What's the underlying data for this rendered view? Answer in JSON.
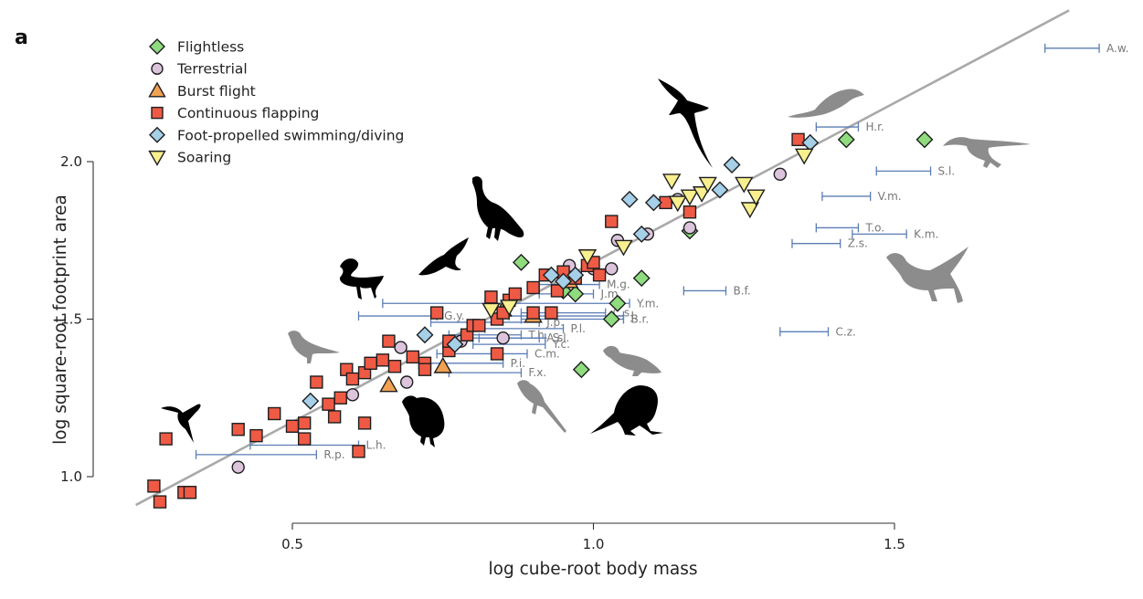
{
  "chart_data": {
    "type": "scatter",
    "panel_label": "a",
    "title": "",
    "xlabel": "log cube-root body mass",
    "ylabel": "log square-root footprint area",
    "xlim": [
      0.24,
      1.9
    ],
    "ylim": [
      0.9,
      2.5
    ],
    "x_ticks": [
      {
        "value": 0.5,
        "label": "0.5"
      },
      {
        "value": 1.0,
        "label": "1.0"
      },
      {
        "value": 1.5,
        "label": "1.5"
      }
    ],
    "y_ticks": [
      {
        "value": 1.0,
        "label": "1.0"
      },
      {
        "value": 1.5,
        "label": "1.5"
      },
      {
        "value": 2.0,
        "label": "2.0"
      }
    ],
    "grid": false,
    "legend_position": "top-left",
    "regression_line": {
      "x": [
        0.24,
        1.79
      ],
      "y": [
        0.91,
        2.48
      ]
    },
    "series": [
      {
        "name": "Flightless",
        "marker": "diamond",
        "color": "#8fdc7e",
        "points": [
          [
            0.88,
            1.68
          ],
          [
            0.95,
            1.59
          ],
          [
            0.97,
            1.58
          ],
          [
            1.04,
            1.55
          ],
          [
            1.03,
            1.5
          ],
          [
            1.08,
            1.63
          ],
          [
            0.98,
            1.34
          ],
          [
            1.16,
            1.78
          ],
          [
            1.42,
            2.07
          ],
          [
            1.55,
            2.07
          ]
        ]
      },
      {
        "name": "Terrestrial",
        "marker": "circle",
        "color": "#dcc5dc",
        "points": [
          [
            0.41,
            1.03
          ],
          [
            0.6,
            1.26
          ],
          [
            0.69,
            1.3
          ],
          [
            0.68,
            1.41
          ],
          [
            0.78,
            1.43
          ],
          [
            0.85,
            1.44
          ],
          [
            0.96,
            1.67
          ],
          [
            1.0,
            1.66
          ],
          [
            1.03,
            1.66
          ],
          [
            1.04,
            1.75
          ],
          [
            1.09,
            1.77
          ],
          [
            1.14,
            1.88
          ],
          [
            1.16,
            1.79
          ],
          [
            1.31,
            1.96
          ]
        ]
      },
      {
        "name": "Burst flight",
        "marker": "triangle-up",
        "color": "#f0a153",
        "points": [
          [
            0.66,
            1.29
          ],
          [
            0.75,
            1.35
          ],
          [
            0.85,
            1.53
          ],
          [
            0.9,
            1.51
          ],
          [
            0.96,
            1.62
          ]
        ]
      },
      {
        "name": "Continuous flapping",
        "marker": "square",
        "color": "#ef5a45",
        "points": [
          [
            0.27,
            0.97
          ],
          [
            0.28,
            0.92
          ],
          [
            0.29,
            1.12
          ],
          [
            0.32,
            0.95
          ],
          [
            0.33,
            0.95
          ],
          [
            0.41,
            1.15
          ],
          [
            0.44,
            1.13
          ],
          [
            0.47,
            1.2
          ],
          [
            0.5,
            1.16
          ],
          [
            0.52,
            1.17
          ],
          [
            0.52,
            1.12
          ],
          [
            0.54,
            1.3
          ],
          [
            0.56,
            1.23
          ],
          [
            0.57,
            1.19
          ],
          [
            0.58,
            1.25
          ],
          [
            0.59,
            1.34
          ],
          [
            0.6,
            1.31
          ],
          [
            0.61,
            1.08
          ],
          [
            0.62,
            1.17
          ],
          [
            0.62,
            1.33
          ],
          [
            0.63,
            1.36
          ],
          [
            0.65,
            1.37
          ],
          [
            0.66,
            1.43
          ],
          [
            0.67,
            1.35
          ],
          [
            0.7,
            1.38
          ],
          [
            0.72,
            1.36
          ],
          [
            0.72,
            1.34
          ],
          [
            0.74,
            1.52
          ],
          [
            0.76,
            1.4
          ],
          [
            0.76,
            1.43
          ],
          [
            0.79,
            1.45
          ],
          [
            0.8,
            1.48
          ],
          [
            0.81,
            1.48
          ],
          [
            0.83,
            1.57
          ],
          [
            0.84,
            1.5
          ],
          [
            0.84,
            1.39
          ],
          [
            0.85,
            1.52
          ],
          [
            0.86,
            1.56
          ],
          [
            0.87,
            1.58
          ],
          [
            0.9,
            1.52
          ],
          [
            0.9,
            1.6
          ],
          [
            0.92,
            1.64
          ],
          [
            0.93,
            1.52
          ],
          [
            0.94,
            1.59
          ],
          [
            0.95,
            1.65
          ],
          [
            0.97,
            1.63
          ],
          [
            0.99,
            1.67
          ],
          [
            1.0,
            1.68
          ],
          [
            1.01,
            1.64
          ],
          [
            1.03,
            1.81
          ],
          [
            1.12,
            1.87
          ],
          [
            1.16,
            1.84
          ],
          [
            1.34,
            2.07
          ]
        ]
      },
      {
        "name": "Foot-propelled swimming/diving",
        "marker": "diamond",
        "color": "#a6cfe8",
        "points": [
          [
            0.53,
            1.24
          ],
          [
            0.72,
            1.45
          ],
          [
            0.77,
            1.42
          ],
          [
            0.93,
            1.64
          ],
          [
            0.95,
            1.62
          ],
          [
            0.97,
            1.64
          ],
          [
            1.06,
            1.88
          ],
          [
            1.08,
            1.77
          ],
          [
            1.1,
            1.87
          ],
          [
            1.21,
            1.91
          ],
          [
            1.23,
            1.99
          ],
          [
            1.36,
            2.06
          ]
        ]
      },
      {
        "name": "Soaring",
        "marker": "triangle-down",
        "color": "#f8ef8e",
        "points": [
          [
            0.83,
            1.53
          ],
          [
            0.86,
            1.54
          ],
          [
            0.99,
            1.7
          ],
          [
            1.05,
            1.73
          ],
          [
            1.13,
            1.94
          ],
          [
            1.14,
            1.87
          ],
          [
            1.16,
            1.89
          ],
          [
            1.18,
            1.9
          ],
          [
            1.19,
            1.93
          ],
          [
            1.25,
            1.93
          ],
          [
            1.26,
            1.85
          ],
          [
            1.27,
            1.89
          ],
          [
            1.35,
            2.02
          ]
        ]
      }
    ],
    "ranges": [
      {
        "label": "A.w.",
        "x": [
          1.75,
          1.84
        ],
        "y": 2.36
      },
      {
        "label": "H.r.",
        "x": [
          1.37,
          1.44
        ],
        "y": 2.11
      },
      {
        "label": "S.l.",
        "x": [
          1.47,
          1.56
        ],
        "y": 1.97
      },
      {
        "label": "V.m.",
        "x": [
          1.38,
          1.46
        ],
        "y": 1.89
      },
      {
        "label": "T.o.",
        "x": [
          1.37,
          1.44
        ],
        "y": 1.79
      },
      {
        "label": "K.m.",
        "x": [
          1.43,
          1.52
        ],
        "y": 1.77
      },
      {
        "label": "Z.s.",
        "x": [
          1.33,
          1.41
        ],
        "y": 1.74
      },
      {
        "label": "B.f.",
        "x": [
          1.15,
          1.22
        ],
        "y": 1.59
      },
      {
        "label": "C.z.",
        "x": [
          1.31,
          1.39
        ],
        "y": 1.46
      },
      {
        "label": "M.g.",
        "x": [
          0.91,
          1.01
        ],
        "y": 1.61
      },
      {
        "label": "J.m.",
        "x": [
          0.91,
          1.0
        ],
        "y": 1.58
      },
      {
        "label": "Y.m.",
        "x": [
          0.83,
          1.06
        ],
        "y": 1.55
      },
      {
        "label": "C.s.",
        "x": [
          0.88,
          1.02
        ],
        "y": 1.52
      },
      {
        "label": "J.",
        "x": [
          0.86,
          1.05
        ],
        "y": 1.51
      },
      {
        "label": "B.r.",
        "x": [
          0.88,
          1.05
        ],
        "y": 1.5
      },
      {
        "label": "I.d.",
        "x": [
          0.65,
          0.82
        ],
        "y": 1.55
      },
      {
        "label": "G.y.",
        "x": [
          0.61,
          0.74
        ],
        "y": 1.51
      },
      {
        "label": "J.p.",
        "x": [
          0.73,
          0.91
        ],
        "y": 1.49
      },
      {
        "label": "P.l.",
        "x": [
          0.82,
          0.95
        ],
        "y": 1.47
      },
      {
        "label": "T.h.",
        "x": [
          0.76,
          0.88
        ],
        "y": 1.45
      },
      {
        "label": "A.s.",
        "x": [
          0.81,
          0.91
        ],
        "y": 1.44
      },
      {
        "label": "S.l.",
        "x": [
          0.79,
          0.92
        ],
        "y": 1.44
      },
      {
        "label": "Y.c.",
        "x": [
          0.8,
          0.92
        ],
        "y": 1.42
      },
      {
        "label": "C.m.",
        "x": [
          0.74,
          0.89
        ],
        "y": 1.39
      },
      {
        "label": "P.i.",
        "x": [
          0.72,
          0.85
        ],
        "y": 1.36
      },
      {
        "label": "F.x.",
        "x": [
          0.76,
          0.88
        ],
        "y": 1.33
      },
      {
        "label": "L.h.",
        "x": [
          0.43,
          0.61
        ],
        "y": 1.1
      },
      {
        "label": "R.p.",
        "x": [
          0.34,
          0.54
        ],
        "y": 1.07
      }
    ],
    "silhouettes": [
      {
        "name": "hummingbird",
        "shade": "black"
      },
      {
        "name": "grebe",
        "shade": "black"
      },
      {
        "name": "eagle",
        "shade": "black"
      },
      {
        "name": "peafowl",
        "shade": "black"
      },
      {
        "name": "albatross",
        "shade": "black"
      },
      {
        "name": "quail",
        "shade": "black"
      },
      {
        "name": "kiwi",
        "shade": "black"
      },
      {
        "name": "extinct-bird-small",
        "shade": "grey"
      },
      {
        "name": "extinct-bird-longtail",
        "shade": "grey"
      },
      {
        "name": "extinct-bird-juvenile",
        "shade": "grey"
      },
      {
        "name": "pterosaur-like-flier",
        "shade": "grey"
      },
      {
        "name": "microraptor",
        "shade": "grey"
      },
      {
        "name": "feathered-dinosaur",
        "shade": "grey"
      }
    ]
  },
  "colors": {
    "regression": "#a9a9a9",
    "range_bar": "#5b7db5",
    "silhouette_dark": "#000000",
    "silhouette_grey": "#8c8c8c"
  }
}
